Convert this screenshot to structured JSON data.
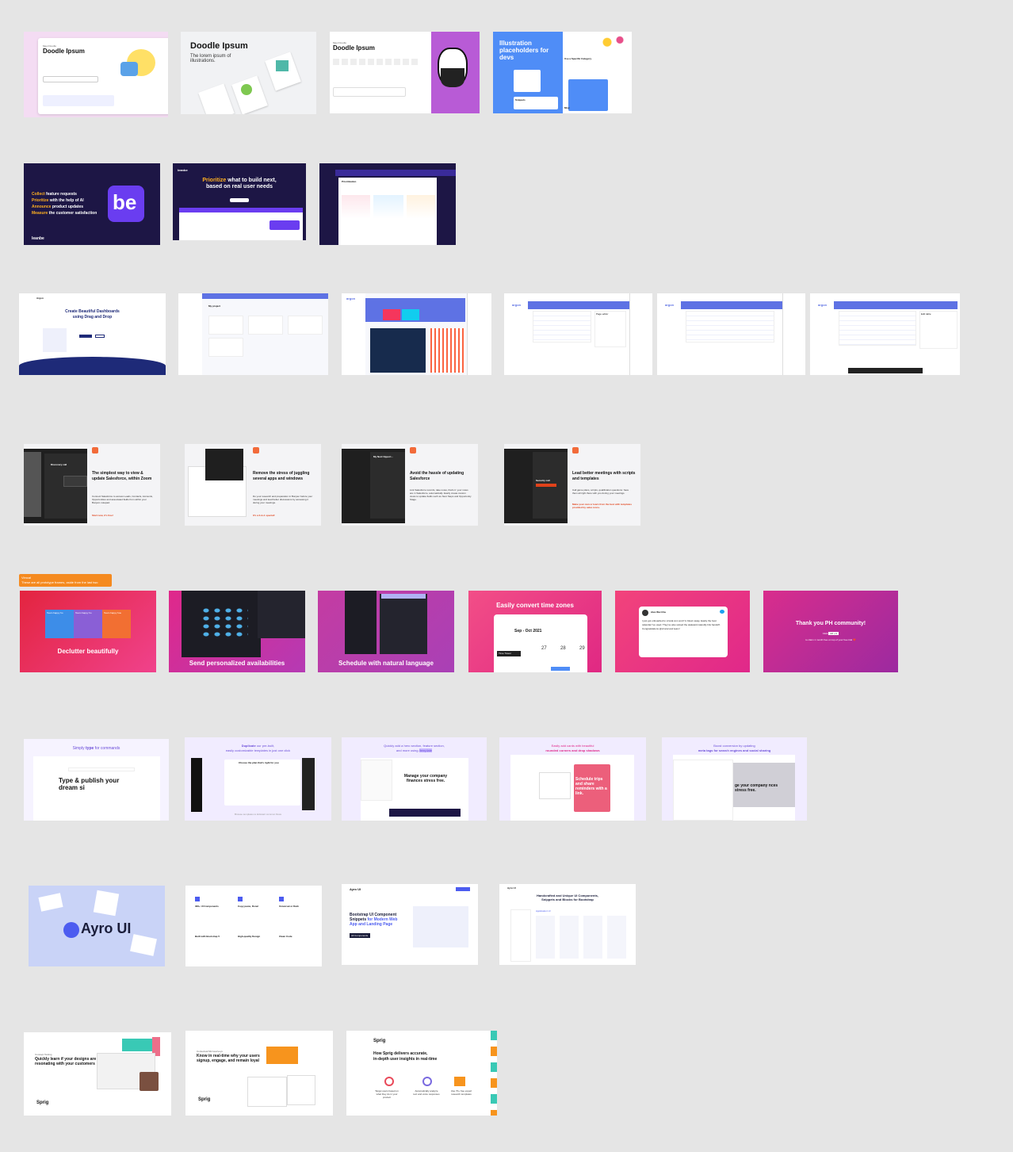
{
  "row1": {
    "d1": {
      "eyebrow": "Meet Doodle",
      "title": "Doodle Ipsum"
    },
    "d2": {
      "title": "Doodle Ipsum",
      "subtitle": "The lorem ipsum of illustrations."
    },
    "d3": {
      "eyebrow": "Meet Doodle",
      "title": "Doodle Ipsum"
    },
    "d4": {
      "title": "Illustration placeholders for devs",
      "side": "Use a Specific Category",
      "snip": "Snippets",
      "misc": "Misc"
    }
  },
  "row2": {
    "l1": {
      "w1": "Collect",
      "r1": " feature requests",
      "w2": "Prioritize",
      "r2": " with the help of AI",
      "w3": "Announce",
      "r3": " product updates",
      "w4": "Measure",
      "r4": " the customer satisfaction",
      "logo": "be",
      "brand": "leanbe"
    },
    "l2": {
      "nav": "leanbe",
      "h1a": "Prioritize",
      "h1b": " what to build next,",
      "h2": "based on real user needs"
    },
    "l3": {
      "title": "Prioritization"
    }
  },
  "row3": {
    "a1": {
      "brand": "Argon",
      "title": "Create Beautiful Dashboards",
      "title2": "using Drag and Drop"
    },
    "a2": {
      "title": "My project"
    },
    "a3": {
      "brand": "argon"
    },
    "a4": {
      "brand": "argon",
      "panel": "Page editor"
    },
    "a5": {
      "brand": "argon"
    },
    "a6": {
      "brand": "argon",
      "panel": "Edit table"
    }
  },
  "row4": {
    "z1": {
      "title": "The simplest way to view & update Salesforce, within Zoom",
      "body": "Connect Salesforce to access Leads, Contacts, Accounts, Opportunities and associated fields from within your Bonjoro notepad.",
      "cta": "Start now, it's free!",
      "card": "Discovery call"
    },
    "z2": {
      "title": "Remove the stress of juggling several apps and windows",
      "body": "Do your research and preparation in Bonjour before your meetings and lead better discussions by accessing it during your meetings.",
      "cta": "It's a 2-in-1 special!"
    },
    "z3": {
      "title": "Avoid the hassle of updating Salesforce",
      "body": "Link Salesforce records, take notes, that's it: your notes are in Salesforce, automatically. Easily create custom views to update fields such as Next Steps and Opportunity Stage.",
      "card": "My Next Opport..."
    },
    "z4": {
      "title": "Lead better meetings with scripts and templates",
      "body": "Call game plans, scripts, qualification questions: have them all right there with you during your meetings.",
      "cta": "Make your own or learn from the best with templates provided by sales icons.",
      "card": "Security call"
    }
  },
  "row5": {
    "tooltip1": "Vimcal",
    "tooltip2": "These are all prototype frames, aside from the last two",
    "v1": {
      "caption": "Declutter beautifully",
      "e1": "Team happy ho",
      "e2": "Team happy ho",
      "e3": "Team happy hou"
    },
    "v2": {
      "caption": "Send personalized availabilities"
    },
    "v3": {
      "caption": "Schedule with natural language"
    },
    "v4": {
      "caption": "Easily convert time zones",
      "month": "Sep - Oct 2021",
      "days": [
        "27",
        "28",
        "29"
      ],
      "tz": "Time Travel"
    },
    "v5": {
      "name": "Alex Wei Chu",
      "tweet": "I just got onboarded to vimcal.com and I'm blown away. Easily the best calendar I've used. They've also solved the awkward calendly link handoff. Congratulations @vimcal and team!"
    },
    "v6": {
      "title": "Thank you PH community!",
      "line1": "Click",
      "key": "ctrl + b",
      "line2": "to claim 1 month free on top of your free trial ❤️"
    }
  },
  "row6": {
    "s1": {
      "pre": "Simply ",
      "hl": "type",
      "post": " for commands",
      "big": "Type & publish your dream si"
    },
    "s2": {
      "pre": "Duplicate",
      "mid": " our pre-built,",
      "line2": "easily customizable templates in just one click",
      "modal": "Choose the plan that's right for you",
      "foot": "Browse templates to kickstart common flows"
    },
    "s3": {
      "line1": "Quickly add a hero section, feature section,",
      "line2": "and more using ",
      "hl": "/template",
      "card": "Manage your company finances stress free."
    },
    "s4": {
      "line1": "Easily add cards with beautiful",
      "line2": "rounded corners and drop shadows",
      "card": "Schedule trips and share reminders with a link."
    },
    "s5": {
      "line1": "Boost conversion by updating",
      "line2": "meta tags for search engines and social sharing",
      "card": "ge your company nces stress free."
    }
  },
  "row7": {
    "ay1": {
      "brand": "Ayro UI"
    },
    "ay2": {
      "items": [
        "300+ UI Components",
        "Copy paste, Done!",
        "Universal or Dark",
        "Built with Bootstrap 5",
        "High-quality Design",
        "Clean Code"
      ]
    },
    "ay3": {
      "brand": "Ayro UI",
      "h1": "Bootstrap UI Component Snippets ",
      "h1b": "for Modern Web App and Landing Page",
      "cta": "All Components"
    },
    "ay4": {
      "brand": "Ayro UI",
      "h1": "Handcrafted and Unique UI Components,",
      "h2": "Snippets and Blocks for Bootstrap",
      "sub": "Application UI"
    }
  },
  "row8": {
    "sp1": {
      "eyebrow": "Concept Testing",
      "title": "Quickly learn if your designs are resonating with your customers",
      "brand": "Sprig"
    },
    "sp2": {
      "eyebrow": "Contextual Microsurveys",
      "title": "Know in real-time why your users signup, engage, and remain loyal",
      "brand": "Sprig"
    },
    "sp3": {
      "brand": "Sprig",
      "title": "How Sprig delivers accurate,",
      "title2": "in-depth user insights in real-time",
      "f1": "Target users based on what they do in your product",
      "f2": "Automatically analyze text and voice responses",
      "f3": "Use 70+ free expert research templates"
    }
  },
  "colors": {
    "canvas": "#e5e5e5",
    "vimcal_pink": "#e0288a",
    "argon_blue": "#5e72e4",
    "leanbe_navy": "#1d1645",
    "leanbe_purple": "#6a3df0",
    "sprig_teal": "#39c9b5"
  }
}
